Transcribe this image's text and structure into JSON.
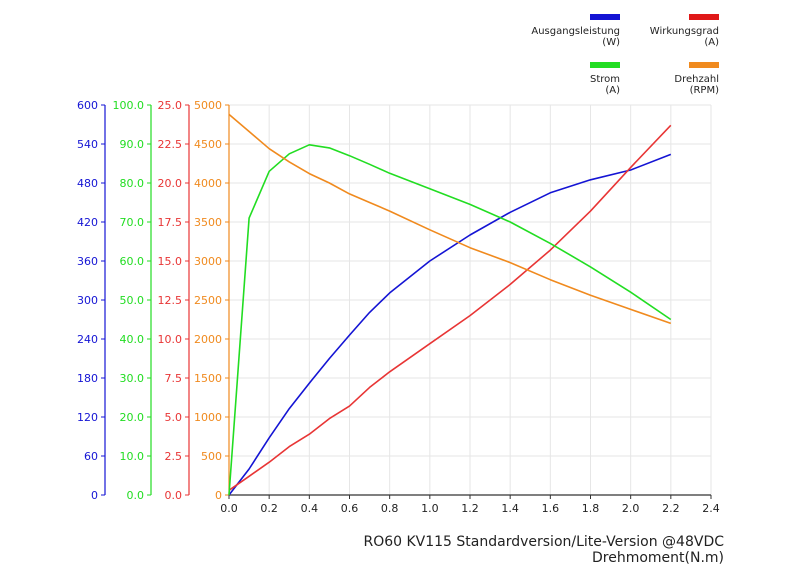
{
  "chart_data": {
    "type": "line",
    "title": "",
    "xlabel": "RO60 KV115 Standardversion/Lite-Version @48VDC Drehmoment(N.m)",
    "xlim": [
      0,
      2.4
    ],
    "x_ticks": [
      "0.0",
      "0.2",
      "0.4",
      "0.6",
      "0.8",
      "1.0",
      "1.2",
      "1.4",
      "1.6",
      "1.8",
      "2.0",
      "2.2",
      "2.4"
    ],
    "grid": true,
    "legend_position": "top-right",
    "y_axes": [
      {
        "id": "power",
        "color": "#1414d4",
        "lim": [
          0,
          600
        ],
        "ticks": [
          "0",
          "60",
          "120",
          "180",
          "240",
          "300",
          "360",
          "420",
          "480",
          "540",
          "600"
        ]
      },
      {
        "id": "current",
        "color": "#22dd22",
        "lim": [
          0,
          100
        ],
        "ticks": [
          "0.0",
          "10.0",
          "20.0",
          "30.0",
          "40.0",
          "50.0",
          "60.0",
          "70.0",
          "80.0",
          "90.0",
          "100.0"
        ]
      },
      {
        "id": "efficiency",
        "color": "#e83535",
        "lim": [
          0,
          25
        ],
        "ticks": [
          "0.0",
          "2.5",
          "5.0",
          "7.5",
          "10.0",
          "12.5",
          "15.0",
          "17.5",
          "20.0",
          "22.5",
          "25.0"
        ]
      },
      {
        "id": "speed",
        "color": "#f08a1e",
        "lim": [
          0,
          5000
        ],
        "ticks": [
          "0",
          "500",
          "1000",
          "1500",
          "2000",
          "2500",
          "3000",
          "3500",
          "4000",
          "4500",
          "5000"
        ]
      }
    ],
    "series": [
      {
        "name": "Ausgangsleistung",
        "unit": "(W)",
        "axis": "power",
        "color": "#1414d4",
        "x": [
          0,
          0.1,
          0.2,
          0.3,
          0.4,
          0.5,
          0.6,
          0.7,
          0.8,
          1.0,
          1.2,
          1.4,
          1.6,
          1.8,
          2.0,
          2.2
        ],
        "values": [
          0,
          40,
          88,
          133,
          172,
          210,
          246,
          281,
          311,
          360,
          400,
          435,
          465,
          485,
          500,
          524
        ]
      },
      {
        "name": "Wirkungsgrad",
        "unit": "(A)",
        "axis": "efficiency",
        "color": "#e83535",
        "x": [
          0,
          0.1,
          0.2,
          0.3,
          0.4,
          0.5,
          0.6,
          0.7,
          0.8,
          1.0,
          1.2,
          1.4,
          1.6,
          1.8,
          2.0,
          2.2
        ],
        "values": [
          0.3,
          1.2,
          2.1,
          3.1,
          3.9,
          4.9,
          5.7,
          6.9,
          7.9,
          9.7,
          11.5,
          13.5,
          15.7,
          18.2,
          21.0,
          23.7
        ]
      },
      {
        "name": "Strom",
        "unit": "(A)",
        "axis": "current",
        "color": "#22dd22",
        "x": [
          0,
          0.1,
          0.2,
          0.3,
          0.4,
          0.5,
          0.6,
          0.7,
          0.8,
          1.0,
          1.2,
          1.4,
          1.6,
          1.8,
          2.0,
          2.2
        ],
        "values": [
          0,
          71,
          83,
          87.5,
          89.8,
          89,
          87,
          84.8,
          82.5,
          78.5,
          74.5,
          70,
          64.5,
          58.5,
          52,
          45
        ]
      },
      {
        "name": "Drehzahl",
        "unit": "(RPM)",
        "axis": "speed",
        "color": "#f08a1e",
        "x": [
          0,
          0.1,
          0.2,
          0.3,
          0.4,
          0.5,
          0.6,
          0.7,
          0.8,
          1.0,
          1.2,
          1.4,
          1.6,
          1.8,
          2.0,
          2.2
        ],
        "values": [
          4880,
          4660,
          4440,
          4270,
          4120,
          4000,
          3860,
          3750,
          3640,
          3400,
          3170,
          2980,
          2760,
          2560,
          2380,
          2200
        ]
      }
    ],
    "legend": [
      {
        "label": "Ausgangsleistung",
        "unit": "(W)",
        "color": "#1414d4"
      },
      {
        "label": "Wirkungsgrad",
        "unit": "(A)",
        "color": "#e01818"
      },
      {
        "label": "Strom",
        "unit": "(A)",
        "color": "#22dd22"
      },
      {
        "label": "Drehzahl",
        "unit": "(RPM)",
        "color": "#f08a1e"
      }
    ]
  }
}
